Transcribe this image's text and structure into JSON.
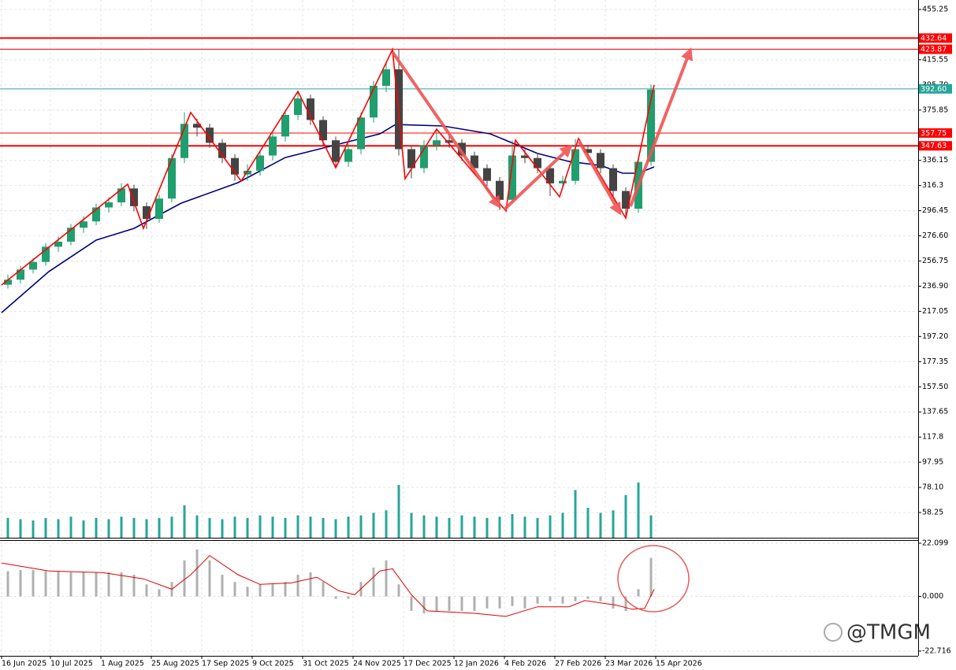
{
  "chart_data": [
    {
      "type": "candlestick",
      "xlim": [
        -0.5,
        290.75
      ],
      "ylim": [
        38.37,
        462.71
      ],
      "yticks": [
        455.25,
        {
          "value": 395.7,
          "label": "395.70"
        },
        415.55,
        375.85,
        336.15,
        316.3,
        296.45,
        {
          "value": 276.6,
          "label": "276.60"
        },
        256.75,
        {
          "value": 236.9,
          "label": "236.90"
        },
        217.05,
        {
          "value": 197.2,
          "label": "197.20"
        },
        177.35,
        {
          "value": 157.5,
          "label": "157.50"
        },
        137.65,
        117.8,
        97.95,
        {
          "value": 78.1,
          "label": "78.10"
        },
        58.25
      ],
      "grid": true,
      "x": [
        2,
        6,
        10,
        14,
        18,
        22,
        26,
        30,
        34,
        38,
        42,
        46,
        50,
        54,
        58,
        62,
        66,
        70,
        74,
        78,
        82,
        86,
        90,
        94,
        98,
        102,
        106,
        110,
        114,
        118,
        122,
        126,
        130,
        134,
        138,
        142,
        146,
        150,
        154,
        158,
        162,
        166,
        170,
        174,
        178,
        182,
        186,
        190,
        194,
        198,
        202,
        206
      ],
      "open": [
        238,
        242,
        250,
        256,
        268,
        272,
        283,
        288,
        299,
        303,
        314,
        300,
        290,
        306,
        338,
        365,
        362,
        350,
        338,
        325,
        328,
        340,
        355,
        372,
        385,
        368,
        352,
        335,
        345,
        370,
        395,
        408,
        345,
        330,
        348,
        352,
        350,
        340,
        330,
        320,
        305,
        340,
        338,
        330,
        318,
        320,
        345,
        342,
        330,
        312,
        298,
        335
      ],
      "high": [
        246,
        253,
        259,
        271,
        276,
        286,
        292,
        302,
        307,
        318,
        317,
        303,
        309,
        341,
        374,
        369,
        365,
        353,
        341,
        333,
        344,
        359,
        376,
        391,
        388,
        371,
        355,
        349,
        374,
        399,
        413,
        424,
        348,
        352,
        361,
        356,
        353,
        343,
        333,
        323,
        352,
        345,
        342,
        333,
        324,
        353,
        348,
        345,
        333,
        315,
        338,
        396
      ],
      "low": [
        235,
        239,
        247,
        253,
        264,
        269,
        279,
        285,
        295,
        300,
        296,
        282,
        287,
        303,
        334,
        355,
        346,
        334,
        320,
        320,
        324,
        336,
        351,
        368,
        364,
        348,
        330,
        331,
        341,
        366,
        390,
        340,
        322,
        326,
        344,
        346,
        336,
        326,
        316,
        297,
        302,
        334,
        326,
        308,
        314,
        317,
        337,
        326,
        308,
        291,
        295,
        332
      ],
      "close": [
        242,
        250,
        256,
        268,
        272,
        283,
        288,
        299,
        303,
        314,
        300,
        290,
        306,
        338,
        365,
        362,
        350,
        338,
        325,
        328,
        340,
        355,
        372,
        385,
        368,
        352,
        335,
        345,
        370,
        395,
        408,
        345,
        330,
        348,
        352,
        350,
        340,
        330,
        320,
        305,
        340,
        338,
        330,
        318,
        320,
        345,
        342,
        330,
        312,
        298,
        335,
        392
      ],
      "up_color": "#1f9e6e",
      "down_color": "#444444",
      "volume": {
        "color": "#26a69a",
        "values": [
          54,
          53,
          52,
          54,
          53,
          55,
          52,
          54,
          53,
          55,
          54,
          53,
          54,
          55,
          64,
          56,
          54,
          53,
          55,
          54,
          56,
          55,
          54,
          56,
          55,
          54,
          53,
          55,
          56,
          58,
          60,
          80,
          58,
          56,
          55,
          54,
          56,
          55,
          54,
          55,
          57,
          55,
          54,
          56,
          58,
          76,
          62,
          58,
          60,
          72,
          82,
          56
        ]
      },
      "moving_average": {
        "color": "#000080",
        "x": [
          0,
          15,
          30,
          42,
          57,
          75,
          90,
          107,
          120,
          125,
          140,
          155,
          170,
          180,
          190,
          197,
          202,
          207
        ],
        "values": [
          216,
          248.4,
          273.2,
          282.5,
          302.4,
          318.6,
          338.4,
          349,
          357.1,
          364.5,
          363.3,
          357.1,
          341.6,
          335.3,
          332.2,
          326,
          326,
          331
        ]
      },
      "zigzag": {
        "color": "#ff0000",
        "x": [
          0,
          40,
          45,
          60,
          76,
          94,
          106,
          124,
          128,
          138,
          160,
          163,
          177,
          183,
          198,
          207
        ],
        "values": [
          237.8,
          317.3,
          282.5,
          373.9,
          319.8,
          390.6,
          330.4,
          423.6,
          321.7,
          360.8,
          296.2,
          352.1,
          307.4,
          353.4,
          290.6,
          395.6
        ]
      },
      "levels": [
        {
          "value": 432.64,
          "color": "#ff0000"
        },
        {
          "value": 423.87,
          "color": "#ff0000"
        },
        {
          "value": 392.6,
          "label": "392.60",
          "color": "#26a69a"
        },
        {
          "value": 357.75,
          "color": "#ff0000"
        },
        {
          "value": 347.63,
          "color": "#ff0000"
        }
      ],
      "watermark": "@TMGM"
    },
    {
      "type": "oscillator",
      "xlim": [
        -0.5,
        290.75
      ],
      "ylim": [
        -24.68,
        23.41
      ],
      "yticks": [
        22.099,
        {
          "value": 0,
          "label": "0.000"
        },
        -22.716
      ],
      "xticks": [
        {
          "value": 0,
          "label": "16 Jun 2025"
        },
        {
          "value": 15.5,
          "label": "10 Jul 2025"
        },
        {
          "value": 31.5,
          "label": "1 Aug 2025"
        },
        {
          "value": 47.5,
          "label": "25 Aug 2025"
        },
        {
          "value": 63.5,
          "label": "17 Sep 2025"
        },
        {
          "value": 79.5,
          "label": "9 Oct 2025"
        },
        {
          "value": 95.5,
          "label": "31 Oct 2025"
        },
        {
          "value": 111.5,
          "label": "24 Nov 2025"
        },
        {
          "value": 127.5,
          "label": "17 Dec 2025"
        },
        {
          "value": 143.5,
          "label": "12 Jan 2026"
        },
        {
          "value": 159.5,
          "label": "4 Feb 2026"
        },
        {
          "value": 175.5,
          "label": "27 Feb 2026"
        },
        {
          "value": 191.5,
          "label": "23 Mar 2026"
        },
        {
          "value": 207.5,
          "label": "15 Apr 2026"
        }
      ],
      "grid": true,
      "x": [
        2,
        6,
        10,
        14,
        18,
        22,
        26,
        30,
        34,
        38,
        42,
        46,
        50,
        54,
        58,
        62,
        66,
        70,
        74,
        78,
        82,
        86,
        90,
        94,
        98,
        102,
        106,
        110,
        114,
        118,
        122,
        126,
        130,
        134,
        138,
        142,
        146,
        150,
        154,
        158,
        162,
        166,
        170,
        174,
        178,
        182,
        186,
        190,
        194,
        198,
        202,
        206
      ],
      "histogram": {
        "color": "#b0b0b0",
        "values": [
          10.5,
          11,
          11,
          10.5,
          10.5,
          10,
          10,
          10,
          10,
          10,
          9,
          5,
          3,
          6,
          15,
          19.5,
          15,
          9,
          6,
          4,
          5,
          5,
          6,
          9,
          10,
          6,
          -1,
          -1,
          6,
          12,
          15,
          5,
          -6,
          -7,
          -6,
          -6,
          -6,
          -6,
          -5,
          -5,
          -4,
          -5,
          -3,
          -2,
          -3,
          -2,
          -1,
          -2,
          -5,
          -6,
          3,
          16
        ]
      },
      "signal": {
        "color": "#e00000",
        "x": [
          0,
          15,
          32,
          45,
          54,
          60,
          66,
          75,
          82,
          92,
          100,
          107,
          112,
          120,
          124,
          130,
          135,
          150,
          160,
          170,
          180,
          185,
          195,
          200,
          204,
          207
        ],
        "values": [
          13.9,
          10.6,
          9.9,
          7.3,
          3,
          9,
          17,
          9,
          5,
          5.6,
          8,
          2.3,
          0.7,
          10.6,
          11.5,
          0.7,
          -6,
          -7,
          -8.3,
          -4.3,
          -4.3,
          -1.7,
          -3.6,
          -5.3,
          -5,
          3
        ]
      }
    }
  ]
}
